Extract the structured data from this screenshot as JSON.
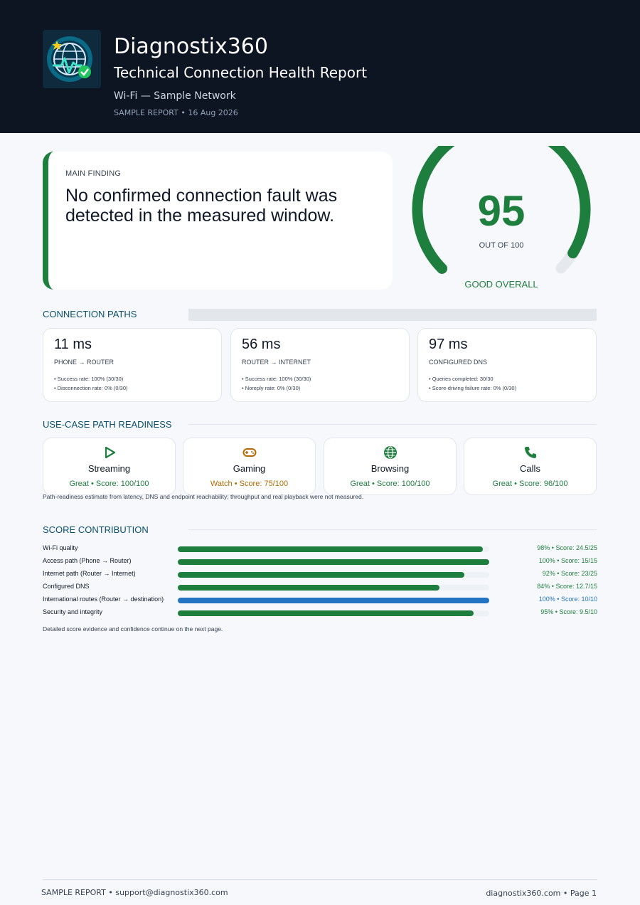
{
  "header": {
    "brand": "Diagnostix360",
    "title": "Technical Connection Health Report",
    "network": "Wi-Fi — Sample Network",
    "sample_line": "SAMPLE REPORT • 16 Aug 2026"
  },
  "finding": {
    "kicker": "MAIN FINDING",
    "text": "No confirmed connection fault was detected in the measured window."
  },
  "gauge": {
    "score": "95",
    "out_of": "OUT OF 100",
    "label": "GOOD OVERALL",
    "value": 95,
    "max": 100,
    "color": "#1e7e3e"
  },
  "connection_paths": {
    "title": "CONNECTION PATHS",
    "cards": [
      {
        "value": "11 ms",
        "label": "PHONE → ROUTER",
        "detail1": "• Success rate: 100% (30/30)",
        "detail2": "• Disconnection rate: 0% (0/30)"
      },
      {
        "value": "56 ms",
        "label": "ROUTER → INTERNET",
        "detail1": "• Success rate: 100% (30/30)",
        "detail2": "• Noreply rate: 0% (0/30)"
      },
      {
        "value": "97 ms",
        "label": "CONFIGURED DNS",
        "detail1": "• Queries completed: 30/30",
        "detail2": "• Score-driving failure rate: 0% (0/30)"
      }
    ]
  },
  "use_cases": {
    "title": "USE-CASE PATH READINESS",
    "cards": [
      {
        "name": "Streaming",
        "status": "Great • Score: 100/100",
        "icon": "play-icon",
        "color": "#1e7e3e"
      },
      {
        "name": "Gaming",
        "status": "Watch • Score: 75/100",
        "icon": "gamepad-icon",
        "color": "#b26a00"
      },
      {
        "name": "Browsing",
        "status": "Great • Score: 100/100",
        "icon": "globe-icon",
        "color": "#1e7e3e"
      },
      {
        "name": "Calls",
        "status": "Great • Score: 96/100",
        "icon": "phone-icon",
        "color": "#1e7e3e"
      }
    ],
    "note": "Path-readiness estimate from latency, DNS and endpoint reachability; throughput and real playback were not measured."
  },
  "score_contribution": {
    "title": "SCORE CONTRIBUTION",
    "rows": [
      {
        "label": "Wi-Fi quality",
        "value": "98% • Score: 24.5/25",
        "percent": 98,
        "color": "#1e7e3e"
      },
      {
        "label": "Access path (Phone → Router)",
        "value": "100% • Score: 15/15",
        "percent": 100,
        "color": "#1e7e3e"
      },
      {
        "label": "Internet path (Router → Internet)",
        "value": "92% • Score: 23/25",
        "percent": 92,
        "color": "#1e7e3e"
      },
      {
        "label": "Configured DNS",
        "value": "84% • Score: 12.7/15",
        "percent": 84,
        "color": "#1e7e3e"
      },
      {
        "label": "International routes (Router → destination)",
        "value": "100% • Score: 10/10",
        "percent": 100,
        "color": "#2474c4"
      },
      {
        "label": "Security and integrity",
        "value": "95% • Score: 9.5/10",
        "percent": 95,
        "color": "#1e7e3e"
      }
    ],
    "note": "Detailed score evidence and confidence continue on the next page."
  },
  "footer": {
    "left": "SAMPLE REPORT • support@diagnostix360.com",
    "right": "diagnostix360.com • Page 1"
  }
}
